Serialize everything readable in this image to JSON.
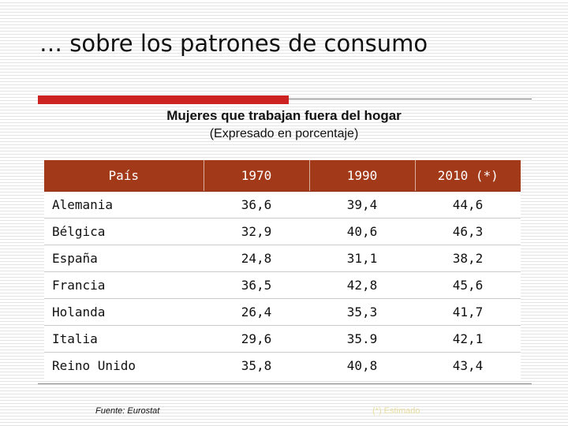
{
  "slide": {
    "title": "… sobre los patrones de consumo"
  },
  "table": {
    "title": "Mujeres que trabajan fuera del hogar",
    "subtitle": "(Expresado en porcentaje)",
    "headers": [
      "País",
      "1970",
      "1990",
      "2010 (*)"
    ],
    "rows": [
      [
        "Alemania",
        "36,6",
        "39,4",
        "44,6"
      ],
      [
        "Bélgica",
        "32,9",
        "40,6",
        "46,3"
      ],
      [
        "España",
        "24,8",
        "31,1",
        "38,2"
      ],
      [
        "Francia",
        "36,5",
        "42,8",
        "45,6"
      ],
      [
        "Holanda",
        "26,4",
        "35,3",
        "41,7"
      ],
      [
        "Italia",
        "29,6",
        "35.9",
        "42,1"
      ],
      [
        "Reino Unido",
        "35,8",
        "40,8",
        "43,4"
      ]
    ]
  },
  "footer": {
    "source": "Fuente: Eurostat",
    "note": "(*) Estimado"
  },
  "colors": {
    "header_bg": "#a23a1a",
    "accent_red": "#cc2222"
  }
}
